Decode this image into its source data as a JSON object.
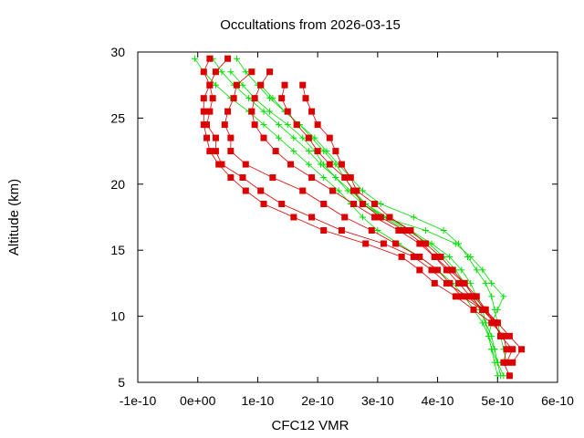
{
  "chart_data": {
    "type": "scatter",
    "title": "Occultations from 2026-03-15",
    "xlabel": "CFC12 VMR",
    "ylabel": "Altitude (km)",
    "xlim": [
      -1e-10,
      6e-10
    ],
    "ylim": [
      5,
      30
    ],
    "x_ticks": [
      {
        "value": -1e-10,
        "label": "-1e-10"
      },
      {
        "value": 0,
        "label": "0e+00"
      },
      {
        "value": 1e-10,
        "label": "1e-10"
      },
      {
        "value": 2e-10,
        "label": "2e-10"
      },
      {
        "value": 3e-10,
        "label": "3e-10"
      },
      {
        "value": 4e-10,
        "label": "4e-10"
      },
      {
        "value": 5e-10,
        "label": "5e-10"
      },
      {
        "value": 6e-10,
        "label": "6e-10"
      }
    ],
    "y_ticks": [
      {
        "value": 5,
        "label": "5"
      },
      {
        "value": 10,
        "label": "10"
      },
      {
        "value": 15,
        "label": "15"
      },
      {
        "value": 20,
        "label": "20"
      },
      {
        "value": 25,
        "label": "25"
      },
      {
        "value": 30,
        "label": "30"
      }
    ],
    "grid": false,
    "legend": "none",
    "colors": {
      "red_series": "#dd0000",
      "green_series": "#00dd00",
      "axis": "#000000"
    },
    "series": [
      {
        "name": "red-profile-1",
        "color": "#dd0000",
        "marker": "square",
        "altitudes": [
          29.5,
          28.5,
          27.5,
          26.5,
          25.5,
          24.5,
          23.5,
          22.5,
          21.5,
          20.5,
          19.5,
          18.5,
          17.5,
          16.5,
          15.5,
          14.5,
          13.5,
          12.5,
          11.5,
          10.5,
          9.5,
          8.5,
          7.5,
          6.5,
          5.5
        ],
        "values": [
          5e-11,
          3e-11,
          2e-11,
          1e-11,
          1e-11,
          1e-11,
          1.5e-11,
          2e-11,
          3.5e-11,
          5.5e-11,
          8e-11,
          1.1e-10,
          1.6e-10,
          2.1e-10,
          2.8e-10,
          3.4e-10,
          3.7e-10,
          3.95e-10,
          4.3e-10,
          4.6e-10,
          4.9e-10,
          5.1e-10,
          5.15e-10,
          5.1e-10,
          5.2e-10
        ]
      },
      {
        "name": "red-profile-2",
        "color": "#dd0000",
        "marker": "square",
        "altitudes": [
          29.5,
          28.5,
          27.5,
          26.5,
          25.5,
          24.5,
          23.5,
          22.5,
          21.5,
          20.5,
          19.5,
          18.5,
          17.5,
          16.5,
          15.5,
          14.5,
          13.5,
          12.5,
          11.5,
          10.5,
          9.5,
          8.5,
          7.5,
          6.5
        ],
        "values": [
          2e-11,
          1e-11,
          2e-11,
          2.5e-11,
          2e-11,
          1.5e-11,
          3e-11,
          3e-11,
          4e-11,
          7.5e-11,
          1.05e-10,
          1.4e-10,
          1.9e-10,
          2.4e-10,
          3.1e-10,
          3.6e-10,
          3.9e-10,
          4.15e-10,
          4.5e-10,
          4.75e-10,
          5e-10,
          5.2e-10,
          5.4e-10,
          5.25e-10
        ]
      },
      {
        "name": "red-profile-3",
        "color": "#dd0000",
        "marker": "square",
        "altitudes": [
          28.5,
          27.5,
          26.5,
          25.5,
          24.5,
          23.5,
          22.5,
          21.5,
          20.5,
          19.5,
          18.5,
          17.5,
          16.5,
          15.5,
          14.5,
          13.5,
          12.5,
          11.5,
          10.5,
          9.5,
          8.5,
          7.5,
          6.5
        ],
        "values": [
          9e-11,
          6.5e-11,
          6e-11,
          5e-11,
          4.5e-11,
          5.5e-11,
          5.5e-11,
          8e-11,
          1.25e-10,
          1.75e-10,
          2.1e-10,
          2.45e-10,
          2.9e-10,
          3.3e-10,
          3.7e-10,
          4e-10,
          4.2e-10,
          4.4e-10,
          4.75e-10,
          4.95e-10,
          5.05e-10,
          5.25e-10,
          5.15e-10
        ]
      },
      {
        "name": "red-profile-4",
        "color": "#dd0000",
        "marker": "square",
        "altitudes": [
          28.5,
          27.5,
          26.5,
          25.5,
          24.5,
          23.5,
          22.5,
          21.5,
          20.5,
          19.5,
          18.5,
          17.5,
          16.5,
          15.5,
          14.5,
          13.5,
          12.5,
          11.5,
          10.5,
          9.5,
          8.5
        ],
        "values": [
          1.2e-10,
          1.05e-10,
          9.5e-11,
          9e-11,
          9.5e-11,
          1.1e-10,
          1.3e-10,
          1.55e-10,
          1.9e-10,
          2.25e-10,
          2.6e-10,
          2.95e-10,
          3.35e-10,
          3.7e-10,
          3.95e-10,
          4.2e-10,
          4.45e-10,
          4.65e-10,
          4.8e-10,
          4.95e-10,
          5.05e-10
        ]
      },
      {
        "name": "red-profile-5",
        "color": "#dd0000",
        "marker": "square",
        "altitudes": [
          27.5,
          26.5,
          25.5,
          24.5,
          23.5,
          22.5,
          21.5,
          20.5,
          19.5,
          18.5,
          17.5,
          16.5,
          15.5,
          14.5,
          13.5,
          12.5,
          11.5,
          10.5,
          9.5,
          8.5
        ],
        "values": [
          1.45e-10,
          1.4e-10,
          1.5e-10,
          1.65e-10,
          1.85e-10,
          2e-10,
          2.2e-10,
          2.45e-10,
          2.6e-10,
          2.75e-10,
          3.05e-10,
          3.45e-10,
          3.75e-10,
          3.95e-10,
          4.15e-10,
          4.35e-10,
          4.55e-10,
          4.75e-10,
          4.95e-10,
          5.05e-10
        ]
      },
      {
        "name": "red-profile-6",
        "color": "#dd0000",
        "marker": "square",
        "altitudes": [
          27.5,
          26.5,
          25.5,
          24.5,
          23.5,
          22.5,
          21.5,
          20.5,
          19.5,
          18.5,
          17.5,
          16.5,
          15.5,
          14.5,
          13.5,
          12.5,
          11.5,
          10.5,
          9.5
        ],
        "values": [
          1.75e-10,
          1.8e-10,
          1.9e-10,
          2e-10,
          2.2e-10,
          2.3e-10,
          2.4e-10,
          2.55e-10,
          2.65e-10,
          2.95e-10,
          3.2e-10,
          3.55e-10,
          3.8e-10,
          4.05e-10,
          4.25e-10,
          4.45e-10,
          4.6e-10,
          4.8e-10,
          5e-10
        ]
      }
    ],
    "green_series": [
      {
        "name": "green-profile-1",
        "color": "#00dd00",
        "marker": "plus",
        "altitudes": [
          29.5,
          28.5,
          27.5,
          26.5,
          25.5,
          24.5,
          23.5,
          22.5,
          21.5,
          20.5,
          19.5,
          18.5,
          17.5,
          16.5,
          15.5,
          14.5,
          13.5,
          12.5,
          11.5,
          10.5,
          9.5,
          8.5,
          7.5,
          6.5,
          5.5
        ],
        "values": [
          -5e-12,
          1e-11,
          3e-11,
          5.5e-11,
          8.5e-11,
          1.1e-10,
          1.35e-10,
          1.6e-10,
          1.85e-10,
          2.1e-10,
          2.35e-10,
          2.55e-10,
          2.75e-10,
          3e-10,
          3.35e-10,
          3.7e-10,
          4e-10,
          4.25e-10,
          4.45e-10,
          4.6e-10,
          4.75e-10,
          4.85e-10,
          4.95e-10,
          5e-10,
          5.05e-10
        ]
      },
      {
        "name": "green-profile-2",
        "color": "#00dd00",
        "marker": "plus",
        "altitudes": [
          29.5,
          28.5,
          27.5,
          26.5,
          25.5,
          24.5,
          23.5,
          22.5,
          21.5,
          20.5,
          19.5,
          18.5,
          17.5,
          16.5,
          15.5,
          14.5,
          13.5,
          12.5,
          11.5,
          10.5,
          9.5,
          8.5,
          7.5,
          6.5,
          5.5
        ],
        "values": [
          2.5e-11,
          4e-11,
          6e-11,
          8.5e-11,
          1.1e-10,
          1.35e-10,
          1.6e-10,
          1.85e-10,
          2.05e-10,
          2.3e-10,
          2.55e-10,
          2.8e-10,
          3.15e-10,
          3.55e-10,
          3.9e-10,
          4.2e-10,
          4.4e-10,
          4.55e-10,
          4.65e-10,
          4.75e-10,
          4.8e-10,
          4.9e-10,
          4.95e-10,
          5e-10,
          5.1e-10
        ]
      },
      {
        "name": "green-profile-3",
        "color": "#00dd00",
        "marker": "plus",
        "altitudes": [
          29.5,
          28.5,
          27.5,
          26.5,
          25.5,
          24.5,
          23.5,
          22.5,
          21.5,
          20.5,
          19.5,
          18.5,
          17.5,
          16.5,
          15.5,
          14.5,
          13.5,
          12.5,
          11.5,
          10.5,
          9.5,
          8.5,
          7.5,
          6.5
        ],
        "values": [
          6.5e-11,
          8e-11,
          1e-10,
          1.2e-10,
          1.45e-10,
          1.7e-10,
          1.95e-10,
          2.15e-10,
          2.35e-10,
          2.55e-10,
          2.75e-10,
          3.05e-10,
          3.6e-10,
          4.1e-10,
          4.35e-10,
          4.5e-10,
          4.65e-10,
          4.8e-10,
          4.9e-10,
          4.95e-10,
          5e-10,
          5.05e-10,
          5.1e-10,
          5.15e-10
        ]
      },
      {
        "name": "green-profile-4",
        "color": "#00dd00",
        "marker": "plus",
        "altitudes": [
          28.5,
          27.5,
          26.5,
          25.5,
          24.5,
          23.5,
          22.5,
          21.5,
          20.5,
          19.5,
          18.5,
          17.5,
          16.5,
          15.5,
          14.5,
          13.5,
          12.5,
          11.5,
          10.5,
          9.5,
          8.5,
          7.5,
          6.5
        ],
        "values": [
          5.5e-11,
          7.5e-11,
          9.5e-11,
          1.2e-10,
          1.5e-10,
          1.75e-10,
          1.95e-10,
          2.1e-10,
          2.3e-10,
          2.5e-10,
          2.75e-10,
          3.1e-10,
          3.8e-10,
          4.3e-10,
          4.55e-10,
          4.75e-10,
          4.9e-10,
          5.1e-10,
          5e-10,
          4.9e-10,
          4.85e-10,
          4.9e-10,
          5e-10
        ]
      },
      {
        "name": "green-profile-5",
        "color": "#00dd00",
        "marker": "plus",
        "altitudes": [
          27.5,
          26.5,
          25.5,
          24.5,
          23.5,
          22.5,
          21.5,
          20.5,
          19.5,
          18.5,
          17.5,
          16.5,
          15.5,
          14.5,
          13.5,
          12.5,
          11.5,
          10.5,
          9.5,
          8.5,
          7.5,
          6.5,
          5.5
        ],
        "values": [
          1.05e-10,
          1.25e-10,
          1.45e-10,
          1.7e-10,
          1.9e-10,
          2.1e-10,
          2.3e-10,
          2.45e-10,
          2.6e-10,
          2.8e-10,
          3.1e-10,
          3.5e-10,
          3.85e-10,
          4.1e-10,
          4.3e-10,
          4.45e-10,
          4.6e-10,
          4.7e-10,
          4.8e-10,
          4.85e-10,
          4.9e-10,
          4.95e-10,
          5e-10
        ]
      }
    ]
  }
}
